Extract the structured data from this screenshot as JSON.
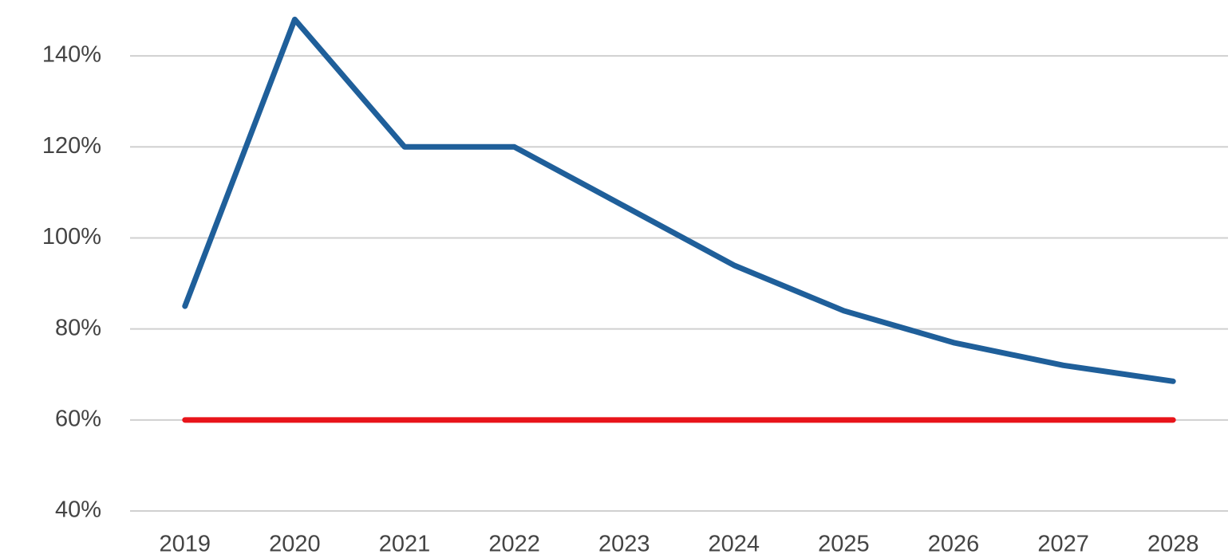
{
  "chart_data": {
    "type": "line",
    "categories": [
      "2019",
      "2020",
      "2021",
      "2022",
      "2023",
      "2024",
      "2025",
      "2026",
      "2027",
      "2028"
    ],
    "series": [
      {
        "color": "#1f5f9a",
        "values": [
          85,
          148,
          120,
          120,
          107,
          94,
          84,
          77,
          72,
          68.5
        ]
      },
      {
        "color": "#e8141a",
        "values": [
          60,
          60,
          60,
          60,
          60,
          60,
          60,
          60,
          60,
          60
        ]
      }
    ],
    "ylim": [
      40,
      150
    ],
    "yticks": [
      {
        "value": 40,
        "label": "40%"
      },
      {
        "value": 60,
        "label": "60%"
      },
      {
        "value": 80,
        "label": "80%"
      },
      {
        "value": 100,
        "label": "100%"
      },
      {
        "value": 120,
        "label": "120%"
      },
      {
        "value": 140,
        "label": "140%"
      }
    ],
    "grid": true
  }
}
